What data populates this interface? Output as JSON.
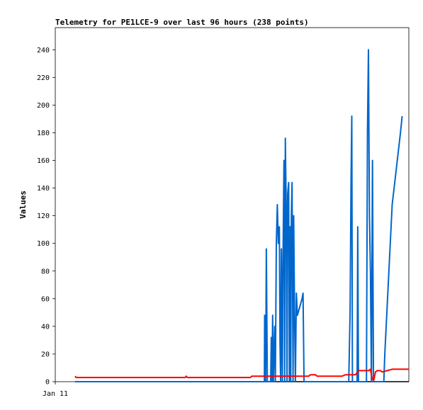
{
  "chart_data": {
    "type": "line",
    "title": "Telemetry for PE1LCE-9 over last 96 hours (238 points)",
    "ylabel": "Values",
    "xlabel": "",
    "x_tick_labels": [
      "Jan 11"
    ],
    "ylim": [
      0,
      256
    ],
    "y_ticks": [
      0,
      20,
      40,
      60,
      80,
      100,
      120,
      140,
      160,
      180,
      200,
      220,
      240
    ],
    "xlim": [
      0,
      100
    ],
    "grid": false,
    "legend": "none",
    "series": [
      {
        "color": "#0066cc",
        "points": [
          [
            0,
            0
          ],
          [
            56.7,
            0
          ],
          [
            56.8,
            48
          ],
          [
            57.1,
            0
          ],
          [
            57.3,
            96
          ],
          [
            57.6,
            0
          ],
          [
            58.6,
            0
          ],
          [
            58.8,
            32
          ],
          [
            59.0,
            0
          ],
          [
            59.2,
            48
          ],
          [
            59.4,
            0
          ],
          [
            59.8,
            40
          ],
          [
            60.0,
            0
          ],
          [
            60.3,
            100
          ],
          [
            60.6,
            128
          ],
          [
            60.9,
            100
          ],
          [
            61.2,
            112
          ],
          [
            61.4,
            28
          ],
          [
            61.6,
            0
          ],
          [
            61.8,
            96
          ],
          [
            62.1,
            0
          ],
          [
            62.3,
            88
          ],
          [
            62.6,
            160
          ],
          [
            62.8,
            0
          ],
          [
            63.0,
            176
          ],
          [
            63.3,
            120
          ],
          [
            63.5,
            0
          ],
          [
            63.7,
            136
          ],
          [
            64.0,
            144
          ],
          [
            64.2,
            0
          ],
          [
            64.4,
            112
          ],
          [
            64.6,
            0
          ],
          [
            64.8,
            120
          ],
          [
            65.0,
            144
          ],
          [
            65.3,
            0
          ],
          [
            65.5,
            120
          ],
          [
            65.8,
            40
          ],
          [
            66.0,
            0
          ],
          [
            66.3,
            64
          ],
          [
            66.6,
            48
          ],
          [
            68.0,
            60
          ],
          [
            68.3,
            64
          ],
          [
            68.6,
            0
          ],
          [
            82.0,
            0
          ],
          [
            82.4,
            50
          ],
          [
            82.7,
            148
          ],
          [
            82.9,
            192
          ],
          [
            83.1,
            0
          ],
          [
            84.5,
            0
          ],
          [
            84.7,
            112
          ],
          [
            84.9,
            0
          ],
          [
            87.3,
            0
          ],
          [
            87.6,
            180
          ],
          [
            87.9,
            240
          ],
          [
            88.2,
            120
          ],
          [
            88.5,
            80
          ],
          [
            88.8,
            0
          ],
          [
            89.1,
            160
          ],
          [
            89.4,
            0
          ],
          [
            92.5,
            0
          ],
          [
            92.8,
            20
          ],
          [
            95.0,
            128
          ],
          [
            97.5,
            180
          ],
          [
            98.0,
            192
          ]
        ]
      },
      {
        "color": "#ff0000",
        "points": [
          [
            0,
            4
          ],
          [
            0.3,
            3
          ],
          [
            33.0,
            3
          ],
          [
            33.3,
            4
          ],
          [
            33.6,
            3
          ],
          [
            52.5,
            3
          ],
          [
            53.0,
            4
          ],
          [
            70.0,
            4
          ],
          [
            70.5,
            5
          ],
          [
            72.0,
            5
          ],
          [
            72.5,
            4
          ],
          [
            80.0,
            4
          ],
          [
            81.0,
            5
          ],
          [
            84.0,
            5
          ],
          [
            85.0,
            8
          ],
          [
            88.0,
            8
          ],
          [
            88.5,
            9
          ],
          [
            89.0,
            2
          ],
          [
            89.5,
            1
          ],
          [
            90.0,
            7
          ],
          [
            90.5,
            8
          ],
          [
            91.5,
            8
          ],
          [
            92.0,
            7
          ],
          [
            93.5,
            8
          ],
          [
            95.0,
            9
          ],
          [
            100,
            9
          ]
        ]
      },
      {
        "color": "#000000",
        "points": [
          [
            0,
            0
          ],
          [
            100,
            0
          ]
        ]
      }
    ]
  }
}
